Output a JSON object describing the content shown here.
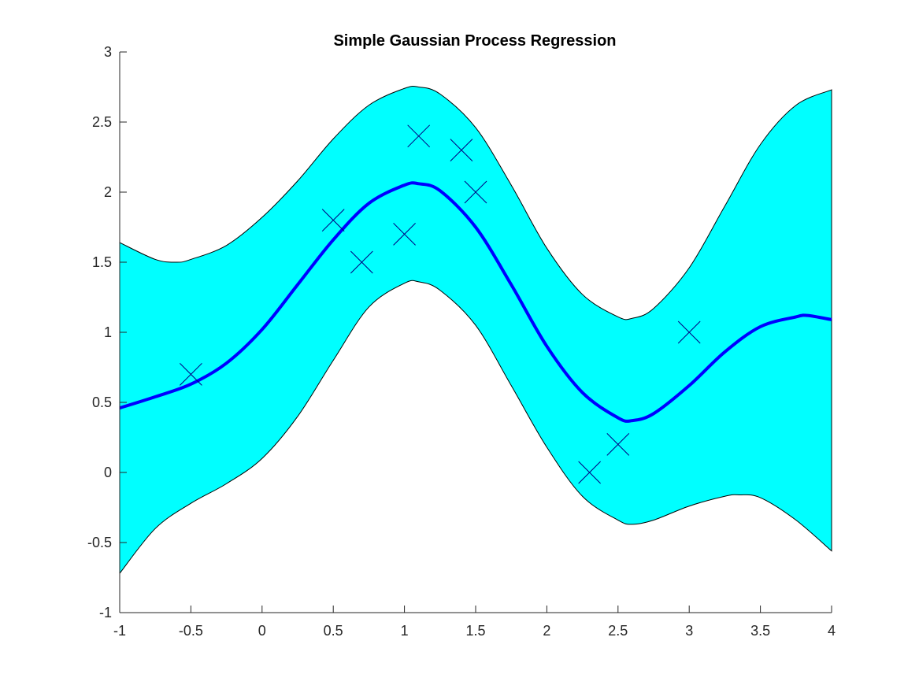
{
  "chart_data": {
    "type": "line",
    "title": "Simple Gaussian Process Regression",
    "xlabel": "",
    "ylabel": "",
    "xlim": [
      -1,
      4
    ],
    "ylim": [
      -1,
      3
    ],
    "xticks": [
      "-1",
      "-0.5",
      "0",
      "0.5",
      "1",
      "1.5",
      "2",
      "2.5",
      "3",
      "3.5",
      "4"
    ],
    "yticks": [
      "-1",
      "-0.5",
      "0",
      "0.5",
      "1",
      "1.5",
      "2",
      "2.5",
      "3"
    ],
    "grid": false,
    "colors": {
      "band": "#00ffff",
      "mean": "#0000ff",
      "observations": "#000080",
      "axes": "#262626"
    },
    "mean": {
      "x": [
        -1,
        -0.75,
        -0.5,
        -0.25,
        0,
        0.25,
        0.5,
        0.75,
        1,
        1.1,
        1.25,
        1.5,
        1.75,
        2,
        2.25,
        2.5,
        2.6,
        2.75,
        3,
        3.25,
        3.5,
        3.75,
        3.83,
        4
      ],
      "y": [
        0.46,
        0.54,
        0.63,
        0.78,
        1.02,
        1.34,
        1.66,
        1.92,
        2.05,
        2.06,
        2.01,
        1.75,
        1.34,
        0.9,
        0.57,
        0.39,
        0.37,
        0.42,
        0.62,
        0.86,
        1.04,
        1.11,
        1.12,
        1.09
      ]
    },
    "band_upper": {
      "x": [
        -1,
        -0.75,
        -0.6,
        -0.5,
        -0.25,
        0,
        0.25,
        0.5,
        0.75,
        1,
        1.1,
        1.25,
        1.5,
        1.75,
        2,
        2.25,
        2.5,
        2.6,
        2.75,
        3,
        3.25,
        3.5,
        3.75,
        4
      ],
      "y": [
        1.64,
        1.52,
        1.5,
        1.52,
        1.62,
        1.82,
        2.08,
        2.38,
        2.62,
        2.74,
        2.75,
        2.7,
        2.46,
        2.05,
        1.6,
        1.27,
        1.11,
        1.1,
        1.17,
        1.46,
        1.9,
        2.34,
        2.62,
        2.73
      ]
    },
    "band_lower": {
      "x": [
        -1,
        -0.75,
        -0.5,
        -0.25,
        0,
        0.25,
        0.5,
        0.75,
        1,
        1.1,
        1.25,
        1.5,
        1.75,
        2,
        2.25,
        2.5,
        2.6,
        2.75,
        3,
        3.25,
        3.35,
        3.5,
        3.75,
        4
      ],
      "y": [
        -0.72,
        -0.4,
        -0.22,
        -0.08,
        0.1,
        0.4,
        0.8,
        1.18,
        1.35,
        1.36,
        1.3,
        1.05,
        0.62,
        0.18,
        -0.17,
        -0.34,
        -0.37,
        -0.34,
        -0.24,
        -0.17,
        -0.16,
        -0.18,
        -0.34,
        -0.56
      ]
    },
    "observations": {
      "x": [
        -0.5,
        0.5,
        0.7,
        1.0,
        1.1,
        1.4,
        1.5,
        2.3,
        2.5,
        3.0
      ],
      "y": [
        0.7,
        1.8,
        1.5,
        1.7,
        2.4,
        2.3,
        2.0,
        0.0,
        0.2,
        1.0
      ]
    }
  }
}
